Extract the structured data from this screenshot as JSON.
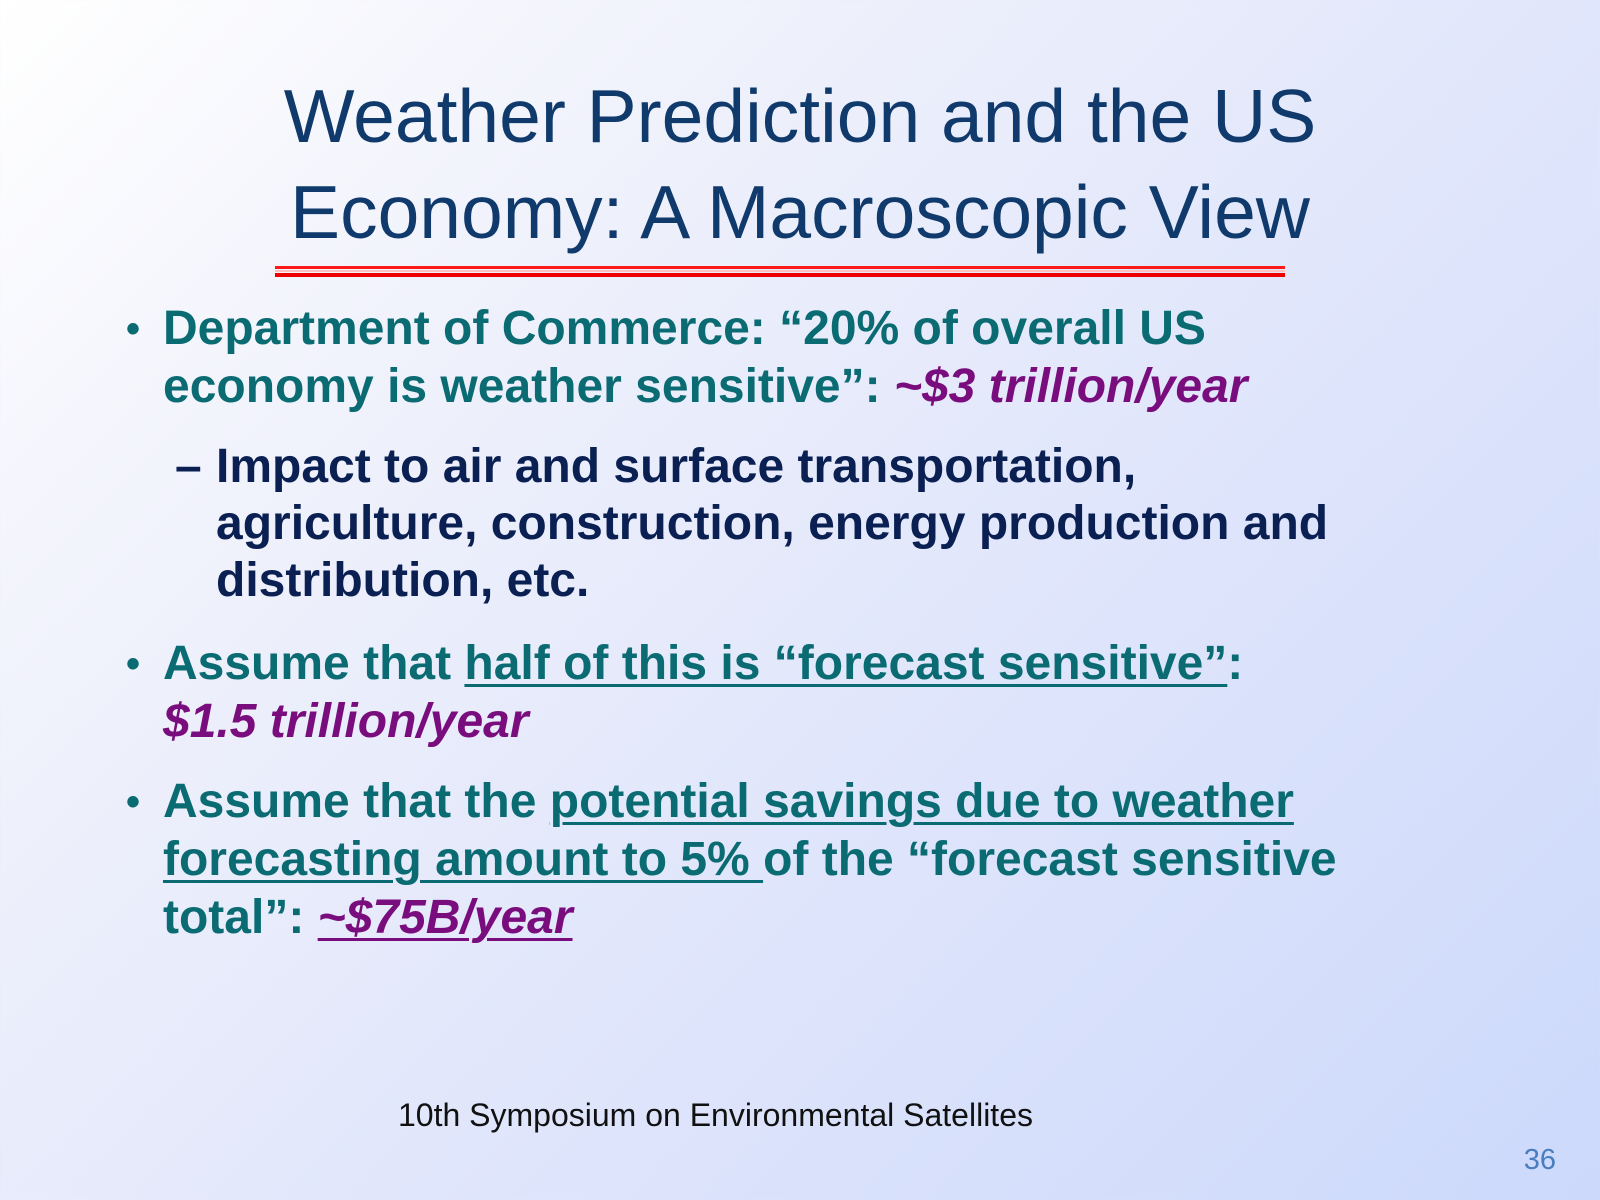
{
  "slide": {
    "title_line1": "Weather Prediction and the US",
    "title_line2": "Economy:  A Macroscopic View",
    "bullet_mark": "•",
    "dash_mark": "–",
    "bullets": [
      {
        "line1": "Department of Commerce: “20% of overall US",
        "line2_prefix": "economy is weather sensitive”: ",
        "line2_highlight": "~$3 trillion/year"
      },
      {
        "prefix": "Assume that ",
        "underlined": "half of this is “forecast sensitive”",
        "suffix": ":",
        "line2_highlight": "$1.5 trillion/year"
      },
      {
        "prefix": "Assume that the ",
        "underlined_line1": "potential savings due to weather",
        "underlined_line2": "forecasting amount to 5% ",
        "line2_suffix": "of the “forecast sensitive",
        "line3_prefix": "total”: ",
        "line3_highlight": "~$75B/year"
      }
    ],
    "sub_bullet": {
      "line1": "Impact to air and surface transportation,",
      "line2": "agriculture, construction, energy production and",
      "line3": "distribution, etc."
    },
    "footer": "10th Symposium on Environmental Satellites",
    "page_number": "36"
  },
  "colors": {
    "title": "#0f3a6b",
    "bullet_text": "#0b6b73",
    "highlight": "#7a0d7d",
    "sub_bullet_text": "#0a1f52",
    "rule": "#ee0000",
    "page_number": "#4a7dbf"
  }
}
